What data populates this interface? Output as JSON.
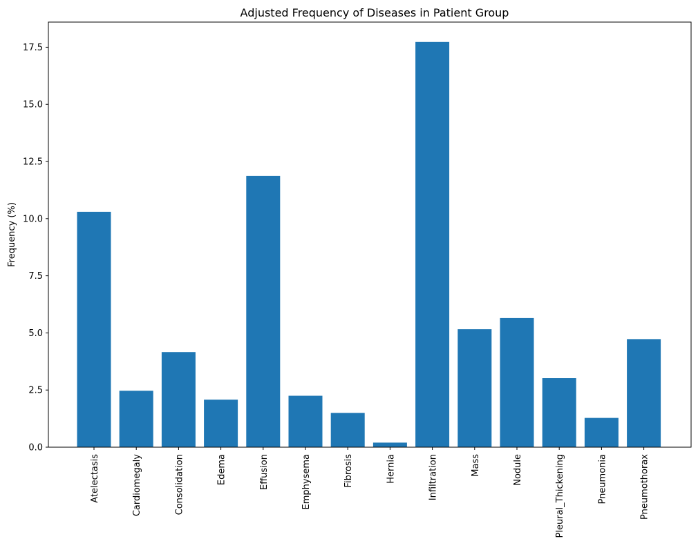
{
  "chart_data": {
    "type": "bar",
    "title": "Adjusted Frequency of Diseases in Patient Group",
    "xlabel": "",
    "ylabel": "Frequency (%)",
    "categories": [
      "Atelectasis",
      "Cardiomegaly",
      "Consolidation",
      "Edema",
      "Effusion",
      "Emphysema",
      "Fibrosis",
      "Hernia",
      "Infiltration",
      "Mass",
      "Nodule",
      "Pleural_Thickening",
      "Pneumonia",
      "Pneumothorax"
    ],
    "values": [
      10.3,
      2.47,
      4.16,
      2.08,
      11.87,
      2.25,
      1.5,
      0.2,
      17.73,
      5.16,
      5.65,
      3.02,
      1.28,
      4.73
    ],
    "ylim": [
      0,
      18.6
    ],
    "yticks": [
      0.0,
      2.5,
      5.0,
      7.5,
      10.0,
      12.5,
      15.0,
      17.5
    ],
    "ytick_labels": [
      "0.0",
      "2.5",
      "5.0",
      "7.5",
      "10.0",
      "12.5",
      "15.0",
      "17.5"
    ],
    "bar_color": "#1f77b4",
    "grid": false,
    "legend": "none"
  }
}
